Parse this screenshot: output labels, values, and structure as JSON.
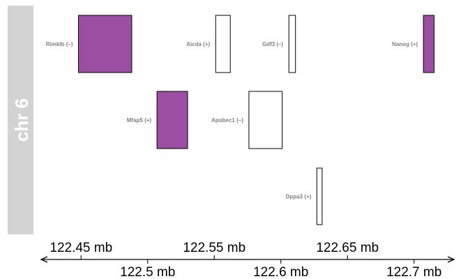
{
  "chromosome": {
    "label": "chr 6",
    "panel_color": "#d3d3d3",
    "label_color": "#ffffff"
  },
  "colors": {
    "filled": "#9b4fa3",
    "empty": "#ffffff",
    "outline": "#000000",
    "label": "#808080"
  },
  "genes": [
    {
      "name": "Rimklb (–)",
      "start_mb": 122.448,
      "end_mb": 122.488,
      "track": 0,
      "filled": true
    },
    {
      "name": "Aicda (+)",
      "start_mb": 122.551,
      "end_mb": 122.562,
      "track": 0,
      "filled": false
    },
    {
      "name": "Gdf3 (–)",
      "start_mb": 122.606,
      "end_mb": 122.611,
      "track": 0,
      "filled": false
    },
    {
      "name": "Nanog (+)",
      "start_mb": 122.707,
      "end_mb": 122.715,
      "track": 0,
      "filled": true
    },
    {
      "name": "Mfap5 (+)",
      "start_mb": 122.507,
      "end_mb": 122.53,
      "track": 1,
      "filled": true
    },
    {
      "name": "Apobec1 (–)",
      "start_mb": 122.576,
      "end_mb": 122.601,
      "track": 1,
      "filled": false
    },
    {
      "name": "Dppa3 (+)",
      "start_mb": 122.627,
      "end_mb": 122.631,
      "track": 2,
      "filled": false
    }
  ],
  "axis": {
    "domain_mb": [
      122.42,
      122.73
    ],
    "ticks_top": [
      {
        "value": 122.45,
        "label": "122.45 mb"
      },
      {
        "value": 122.55,
        "label": "122.55 mb"
      },
      {
        "value": 122.65,
        "label": "122.65 mb"
      }
    ],
    "ticks_bottom": [
      {
        "value": 122.5,
        "label": "122.5 mb"
      },
      {
        "value": 122.6,
        "label": "122.6 mb"
      },
      {
        "value": 122.7,
        "label": "122.7 mb"
      }
    ]
  }
}
